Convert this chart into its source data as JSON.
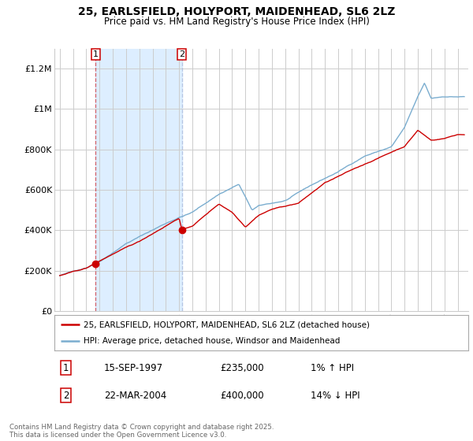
{
  "title_line1": "25, EARLSFIELD, HOLYPORT, MAIDENHEAD, SL6 2LZ",
  "title_line2": "Price paid vs. HM Land Registry's House Price Index (HPI)",
  "ylabel_ticks": [
    "£0",
    "£200K",
    "£400K",
    "£600K",
    "£800K",
    "£1M",
    "£1.2M"
  ],
  "ytick_values": [
    0,
    200000,
    400000,
    600000,
    800000,
    1000000,
    1200000
  ],
  "ylim": [
    0,
    1300000
  ],
  "xlim_start": 1994.6,
  "xlim_end": 2025.8,
  "purchase1_date": 1997.71,
  "purchase1_price": 235000,
  "purchase2_date": 2004.22,
  "purchase2_price": 400000,
  "legend_line1": "25, EARLSFIELD, HOLYPORT, MAIDENHEAD, SL6 2LZ (detached house)",
  "legend_line2": "HPI: Average price, detached house, Windsor and Maidenhead",
  "footer": "Contains HM Land Registry data © Crown copyright and database right 2025.\nThis data is licensed under the Open Government Licence v3.0.",
  "red_color": "#cc0000",
  "blue_color": "#7aadcf",
  "shade_color": "#ddeeff",
  "box_color": "#cc0000",
  "grid_color": "#cccccc",
  "table_row1": [
    "1",
    "15-SEP-1997",
    "£235,000",
    "1% ↑ HPI"
  ],
  "table_row2": [
    "2",
    "22-MAR-2004",
    "£400,000",
    "14% ↓ HPI"
  ]
}
